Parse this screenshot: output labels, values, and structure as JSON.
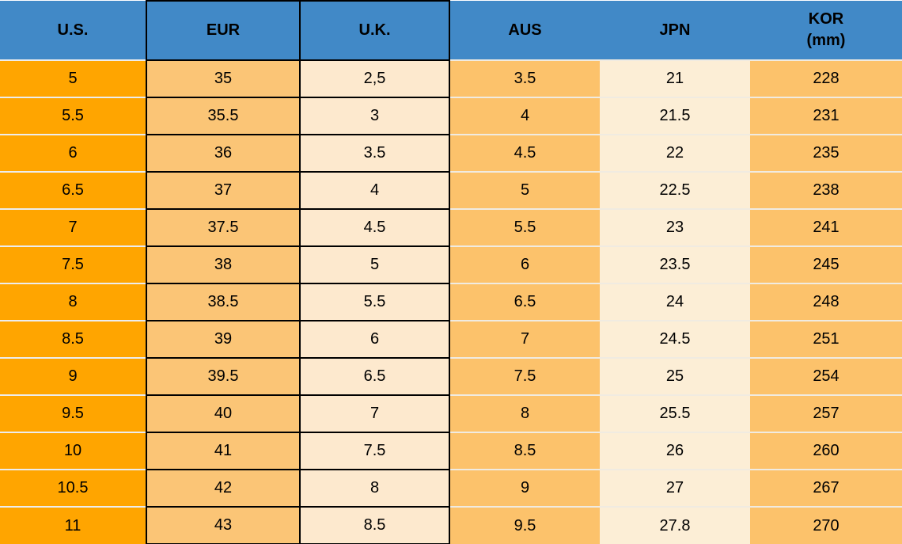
{
  "chart_data": {
    "type": "table",
    "columns": [
      {
        "key": "us",
        "label": "U.S."
      },
      {
        "key": "eur",
        "label": "EUR"
      },
      {
        "key": "uk",
        "label": "U.K."
      },
      {
        "key": "aus",
        "label": "AUS"
      },
      {
        "key": "jpn",
        "label": "JPN"
      },
      {
        "key": "kor",
        "label": "KOR",
        "sublabel": "(mm)"
      }
    ],
    "rows": [
      [
        "5",
        "35",
        "2,5",
        "3.5",
        "21",
        "228"
      ],
      [
        "5.5",
        "35.5",
        "3",
        "4",
        "21.5",
        "231"
      ],
      [
        "6",
        "36",
        "3.5",
        "4.5",
        "22",
        "235"
      ],
      [
        "6.5",
        "37",
        "4",
        "5",
        "22.5",
        "238"
      ],
      [
        "7",
        "37.5",
        "4.5",
        "5.5",
        "23",
        "241"
      ],
      [
        "7.5",
        "38",
        "5",
        "6",
        "23.5",
        "245"
      ],
      [
        "8",
        "38.5",
        "5.5",
        "6.5",
        "24",
        "248"
      ],
      [
        "8.5",
        "39",
        "6",
        "7",
        "24.5",
        "251"
      ],
      [
        "9",
        "39.5",
        "6.5",
        "7.5",
        "25",
        "254"
      ],
      [
        "9.5",
        "40",
        "7",
        "8",
        "25.5",
        "257"
      ],
      [
        "10",
        "41",
        "7.5",
        "8.5",
        "26",
        "260"
      ],
      [
        "10.5",
        "42",
        "8",
        "9",
        "27",
        "267"
      ],
      [
        "11",
        "43",
        "8.5",
        "9.5",
        "27.8",
        "270"
      ]
    ]
  },
  "colors": {
    "header-blue": "#4189C7",
    "us-orange": "#FFA500",
    "eur-orange": "#FBC576",
    "uk-cream": "#FDE9CE",
    "aus-orange": "#FCC26B",
    "jpn-cream": "#FCEED6",
    "kor-orange": "#FCC26B",
    "grid-black": "#000000",
    "sep-cool": "#EDEDED",
    "sep-warm": "#F0EBE1",
    "text": "#000000"
  }
}
